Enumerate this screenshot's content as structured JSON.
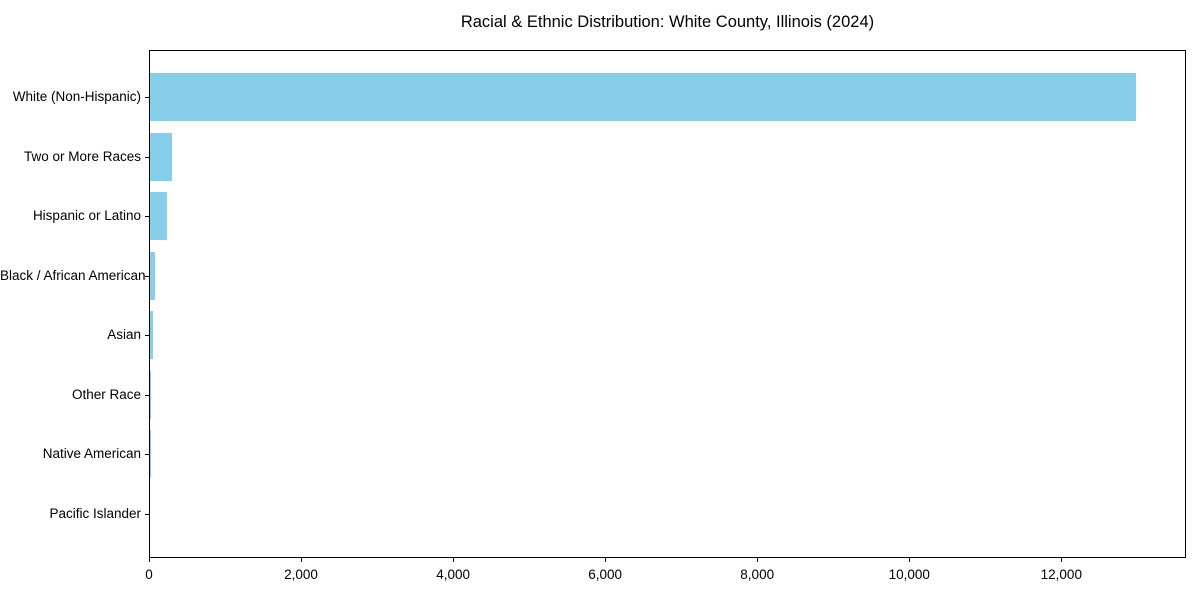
{
  "chart_data": {
    "type": "bar",
    "orientation": "horizontal",
    "title": "Racial & Ethnic Distribution: White County, Illinois (2024)",
    "categories": [
      "White (Non-Hispanic)",
      "Two or More Races",
      "Hispanic or Latino",
      "Black / African American",
      "Asian",
      "Other Race",
      "Native American",
      "Pacific Islander"
    ],
    "values": [
      12970,
      285,
      218,
      70,
      33,
      10,
      4,
      0
    ],
    "bar_color": "#87CEEB",
    "plot_background": "#ffffff",
    "frame_color": "#000000",
    "xlabel": "",
    "ylabel": "",
    "xlim": [
      0,
      13640
    ],
    "x_ticks": [
      0,
      2000,
      4000,
      6000,
      8000,
      10000,
      12000
    ],
    "x_tick_labels": [
      "0",
      "2,000",
      "4,000",
      "6,000",
      "8,000",
      "10,000",
      "12,000"
    ],
    "grid": false,
    "legend": false
  }
}
